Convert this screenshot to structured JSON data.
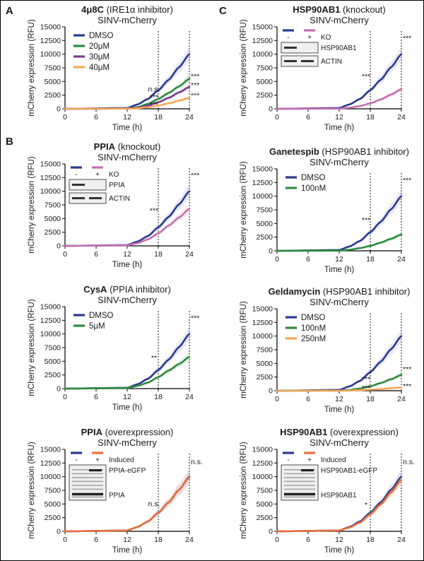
{
  "panel_labels": {
    "A": "A",
    "B": "B",
    "C": "C"
  },
  "common": {
    "xlabel": "Time (h)",
    "ylabel": "mCherry expression (RFU)",
    "xticks": [
      0,
      6,
      12,
      18,
      24
    ],
    "yticks": [
      0,
      2500,
      5000,
      7500,
      10000,
      12500,
      15000
    ],
    "xlim": [
      0,
      24
    ],
    "ylim": [
      0,
      15000
    ],
    "dashed_x": [
      18,
      24
    ]
  },
  "colors": {
    "dmso": "#2b3a8f",
    "green": "#2e8b3a",
    "purple": "#7a3d91",
    "orange": "#f2a65a",
    "pink": "#c46fb0",
    "overexp": "#e8703a"
  },
  "chart_data": [
    {
      "id": "p1",
      "type": "line",
      "title_bold": "4μ8C",
      "title_rest": " (IRE1α inhibitor)",
      "subtitle": "SINV-mCherry",
      "series": [
        {
          "name": "DMSO",
          "color": "#2b3a8f",
          "points": [
            [
              0,
              0
            ],
            [
              12,
              150
            ],
            [
              14,
              800
            ],
            [
              16,
              1800
            ],
            [
              18,
              3400
            ],
            [
              20,
              5300
            ],
            [
              22,
              7600
            ],
            [
              24,
              10000
            ]
          ]
        },
        {
          "name": "20μM",
          "color": "#2e8b3a",
          "points": [
            [
              0,
              0
            ],
            [
              12,
              60
            ],
            [
              14,
              300
            ],
            [
              16,
              900
            ],
            [
              18,
              1800
            ],
            [
              20,
              2900
            ],
            [
              22,
              4100
            ],
            [
              24,
              5500
            ]
          ]
        },
        {
          "name": "30μM",
          "color": "#7a3d91",
          "points": [
            [
              0,
              0
            ],
            [
              12,
              40
            ],
            [
              14,
              200
            ],
            [
              16,
              600
            ],
            [
              18,
              1200
            ],
            [
              20,
              2000
            ],
            [
              22,
              3000
            ],
            [
              24,
              4000
            ]
          ]
        },
        {
          "name": "40μM",
          "color": "#f2a65a",
          "points": [
            [
              0,
              0
            ],
            [
              12,
              20
            ],
            [
              14,
              100
            ],
            [
              16,
              300
            ],
            [
              18,
              600
            ],
            [
              20,
              1000
            ],
            [
              22,
              1500
            ],
            [
              24,
              2000
            ]
          ]
        }
      ],
      "annotations": [
        {
          "x": 18,
          "y": 3200,
          "text": "n.s."
        },
        {
          "x": 18,
          "y": 1700,
          "text": "***"
        },
        {
          "x": 18,
          "y": 300,
          "text": "***"
        },
        {
          "x": 24,
          "y": 5500,
          "text": "***"
        },
        {
          "x": 24,
          "y": 3900,
          "text": "***"
        },
        {
          "x": 24,
          "y": 2000,
          "text": "***"
        }
      ]
    },
    {
      "id": "p2",
      "type": "line",
      "title_bold": "PPIA",
      "title_rest": " (knockout)",
      "subtitle": "SINV-mCherry",
      "legend_header": [
        "-",
        "+",
        "KO"
      ],
      "blot_labels": [
        "PPIA",
        "ACTIN"
      ],
      "series": [
        {
          "name": "-",
          "color": "#2b3a8f",
          "points": [
            [
              0,
              0
            ],
            [
              12,
              150
            ],
            [
              14,
              800
            ],
            [
              16,
              1800
            ],
            [
              18,
              3400
            ],
            [
              20,
              5300
            ],
            [
              22,
              7600
            ],
            [
              24,
              10000
            ]
          ]
        },
        {
          "name": "+",
          "color": "#c46fb0",
          "points": [
            [
              0,
              0
            ],
            [
              12,
              100
            ],
            [
              14,
              500
            ],
            [
              16,
              1200
            ],
            [
              18,
              2300
            ],
            [
              20,
              3700
            ],
            [
              22,
              5200
            ],
            [
              24,
              6800
            ]
          ]
        }
      ],
      "annotations": [
        {
          "x": 18,
          "y": 6000,
          "text": "***"
        },
        {
          "x": 24,
          "y": 12500,
          "text": "***"
        }
      ]
    },
    {
      "id": "p3",
      "type": "line",
      "title_bold": "CysA",
      "title_rest": " (PPIA inhibitor)",
      "subtitle": "SINV-mCherry",
      "series": [
        {
          "name": "DMSO",
          "color": "#2b3a8f",
          "points": [
            [
              0,
              0
            ],
            [
              12,
              150
            ],
            [
              14,
              800
            ],
            [
              16,
              1800
            ],
            [
              18,
              3400
            ],
            [
              20,
              5300
            ],
            [
              22,
              7600
            ],
            [
              24,
              10000
            ]
          ]
        },
        {
          "name": "5μM",
          "color": "#2e8b3a",
          "points": [
            [
              0,
              0
            ],
            [
              12,
              100
            ],
            [
              14,
              500
            ],
            [
              16,
              1100
            ],
            [
              18,
              2100
            ],
            [
              20,
              3300
            ],
            [
              22,
              4500
            ],
            [
              24,
              5800
            ]
          ]
        }
      ],
      "annotations": [
        {
          "x": 18,
          "y": 5200,
          "text": "**"
        },
        {
          "x": 24,
          "y": 12500,
          "text": "***"
        }
      ]
    },
    {
      "id": "p4",
      "type": "line",
      "title_bold": "PPIA",
      "title_rest": " (overexpression)",
      "subtitle": "SINV-mCherry",
      "legend_header": [
        "-",
        "+",
        "Induced"
      ],
      "blot_labels": [
        "PPIA-eGFP",
        "PPIA"
      ],
      "series": [
        {
          "name": "-",
          "color": "#2b3a8f",
          "points": [
            [
              0,
              0
            ],
            [
              12,
              150
            ],
            [
              14,
              800
            ],
            [
              16,
              1800
            ],
            [
              18,
              3400
            ],
            [
              20,
              5300
            ],
            [
              22,
              7600
            ],
            [
              24,
              10000
            ]
          ]
        },
        {
          "name": "+",
          "color": "#e8703a",
          "points": [
            [
              0,
              0
            ],
            [
              12,
              150
            ],
            [
              14,
              800
            ],
            [
              16,
              1800
            ],
            [
              18,
              3400
            ],
            [
              20,
              5300
            ],
            [
              22,
              7600
            ],
            [
              24,
              9900
            ]
          ]
        }
      ],
      "annotations": [
        {
          "x": 18,
          "y": 4600,
          "text": "n.s."
        },
        {
          "x": 24,
          "y": 12300,
          "text": "n.s."
        }
      ]
    },
    {
      "id": "p5",
      "type": "line",
      "title_bold": "HSP90AB1",
      "title_rest": " (knockout)",
      "subtitle": "SINV-mCherry",
      "legend_header": [
        "-",
        "+",
        "KO"
      ],
      "blot_labels": [
        "HSP90AB1",
        "ACTIN"
      ],
      "series": [
        {
          "name": "-",
          "color": "#2b3a8f",
          "points": [
            [
              0,
              0
            ],
            [
              12,
              150
            ],
            [
              14,
              800
            ],
            [
              16,
              1800
            ],
            [
              18,
              3400
            ],
            [
              20,
              5300
            ],
            [
              22,
              7600
            ],
            [
              24,
              10000
            ]
          ]
        },
        {
          "name": "+",
          "color": "#c46fb0",
          "points": [
            [
              0,
              0
            ],
            [
              12,
              40
            ],
            [
              14,
              200
            ],
            [
              16,
              500
            ],
            [
              18,
              1000
            ],
            [
              20,
              1700
            ],
            [
              22,
              2600
            ],
            [
              24,
              3600
            ]
          ]
        }
      ],
      "annotations": [
        {
          "x": 18,
          "y": 5500,
          "text": "***"
        },
        {
          "x": 24,
          "y": 12500,
          "text": "***"
        }
      ]
    },
    {
      "id": "p6",
      "type": "line",
      "title_bold": "Ganetespib",
      "title_rest": " (HSP90AB1 inhibitor)",
      "subtitle": "SINV-mCherry",
      "series": [
        {
          "name": "DMSO",
          "color": "#2b3a8f",
          "points": [
            [
              0,
              0
            ],
            [
              12,
              150
            ],
            [
              14,
              800
            ],
            [
              16,
              1800
            ],
            [
              18,
              3400
            ],
            [
              20,
              5300
            ],
            [
              22,
              7600
            ],
            [
              24,
              10000
            ]
          ]
        },
        {
          "name": "100nM",
          "color": "#2e8b3a",
          "points": [
            [
              0,
              0
            ],
            [
              12,
              40
            ],
            [
              14,
              200
            ],
            [
              16,
              500
            ],
            [
              18,
              900
            ],
            [
              20,
              1500
            ],
            [
              22,
              2200
            ],
            [
              24,
              3000
            ]
          ]
        }
      ],
      "annotations": [
        {
          "x": 18,
          "y": 5200,
          "text": "***"
        },
        {
          "x": 24,
          "y": 12500,
          "text": "***"
        }
      ]
    },
    {
      "id": "p7",
      "type": "line",
      "title_bold": "Geldamycin",
      "title_rest": " (HSP90AB1 inhibitor)",
      "subtitle": "SINV-mCherry",
      "series": [
        {
          "name": "DMSO",
          "color": "#2b3a8f",
          "points": [
            [
              0,
              0
            ],
            [
              12,
              150
            ],
            [
              14,
              800
            ],
            [
              16,
              1800
            ],
            [
              18,
              3400
            ],
            [
              20,
              5300
            ],
            [
              22,
              7600
            ],
            [
              24,
              10000
            ]
          ]
        },
        {
          "name": "100nM",
          "color": "#2e8b3a",
          "points": [
            [
              0,
              0
            ],
            [
              12,
              30
            ],
            [
              14,
              150
            ],
            [
              16,
              400
            ],
            [
              18,
              800
            ],
            [
              20,
              1400
            ],
            [
              22,
              2100
            ],
            [
              24,
              2900
            ]
          ]
        },
        {
          "name": "250nM",
          "color": "#f2a65a",
          "points": [
            [
              0,
              0
            ],
            [
              12,
              10
            ],
            [
              14,
              40
            ],
            [
              16,
              100
            ],
            [
              18,
              200
            ],
            [
              20,
              300
            ],
            [
              22,
              450
            ],
            [
              24,
              600
            ]
          ]
        }
      ],
      "annotations": [
        {
          "x": 18,
          "y": 1700,
          "text": "***"
        },
        {
          "x": 18,
          "y": 80,
          "text": "***"
        },
        {
          "x": 24,
          "y": 3500,
          "text": "***"
        },
        {
          "x": 24,
          "y": 400,
          "text": "***"
        }
      ]
    },
    {
      "id": "p8",
      "type": "line",
      "title_bold": "HSP90AB1",
      "title_rest": " (overexpression)",
      "subtitle": "SINV-mCherry",
      "legend_header": [
        "-",
        "+",
        "Induced"
      ],
      "blot_labels": [
        "HSP90AB1-eGFP",
        "HSP90AB1"
      ],
      "series": [
        {
          "name": "-",
          "color": "#2b3a8f",
          "points": [
            [
              0,
              0
            ],
            [
              12,
              150
            ],
            [
              14,
              800
            ],
            [
              16,
              1800
            ],
            [
              18,
              3400
            ],
            [
              20,
              5300
            ],
            [
              22,
              7600
            ],
            [
              24,
              10000
            ]
          ]
        },
        {
          "name": "+",
          "color": "#e8703a",
          "points": [
            [
              0,
              0
            ],
            [
              12,
              150
            ],
            [
              14,
              700
            ],
            [
              16,
              1600
            ],
            [
              18,
              3100
            ],
            [
              20,
              4900
            ],
            [
              22,
              7100
            ],
            [
              24,
              9400
            ]
          ]
        }
      ],
      "annotations": [
        {
          "x": 18,
          "y": 4400,
          "text": "*"
        },
        {
          "x": 24,
          "y": 12300,
          "text": "n.s."
        }
      ]
    }
  ]
}
